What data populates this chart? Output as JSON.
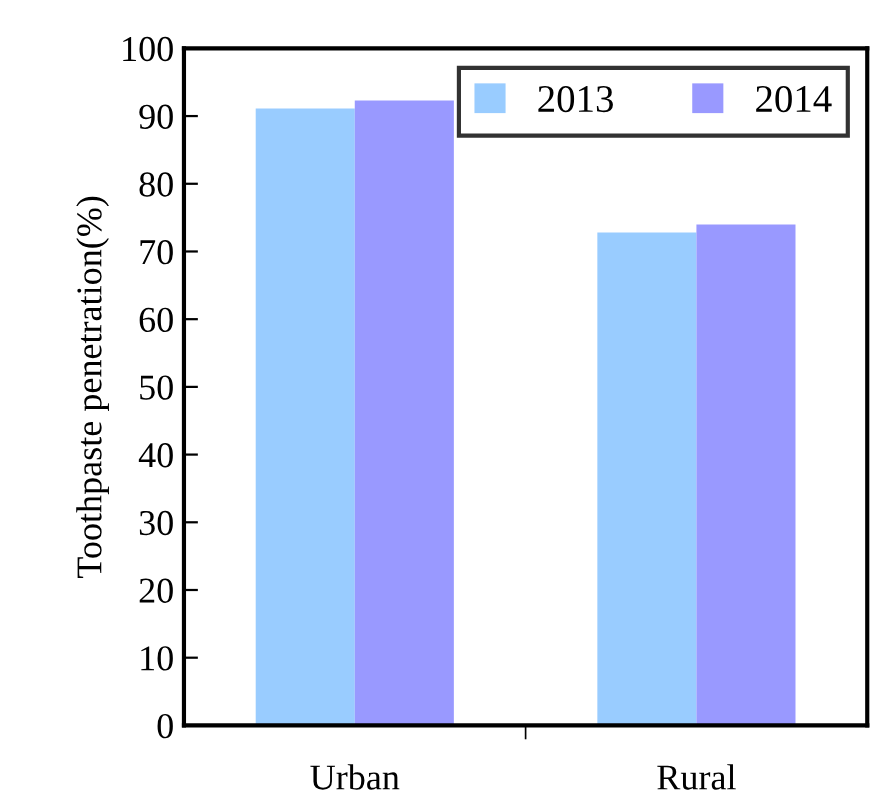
{
  "chart_data": {
    "type": "bar",
    "ylabel": "Toothpaste penetration(%)",
    "categories": [
      "Urban",
      "Rural"
    ],
    "series": [
      {
        "name": "2013",
        "color": "#99ccff",
        "values": [
          91.1,
          72.8
        ]
      },
      {
        "name": "2014",
        "color": "#9999ff",
        "values": [
          92.3,
          74.0
        ]
      }
    ],
    "ylim": [
      0,
      100
    ],
    "yticks": [
      0,
      10,
      20,
      30,
      40,
      50,
      60,
      70,
      80,
      90,
      100
    ],
    "grid": false,
    "legend": "top right"
  }
}
